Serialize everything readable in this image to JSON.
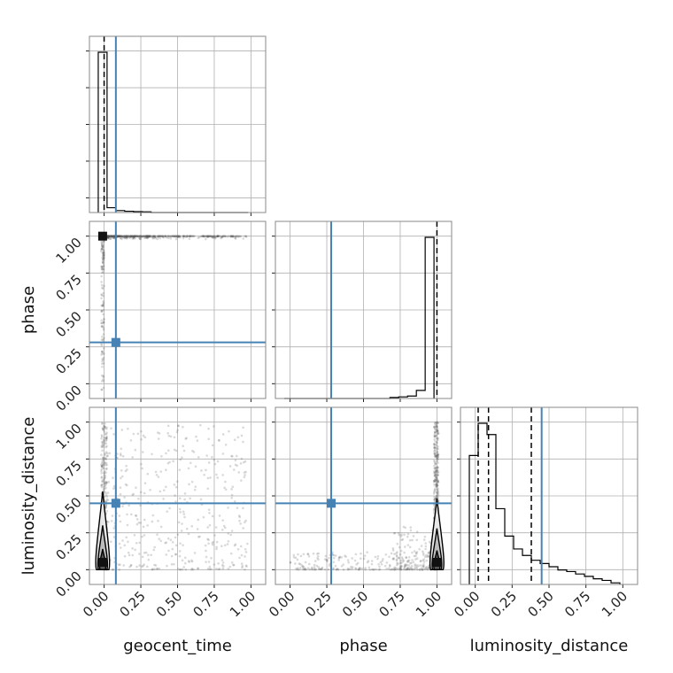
{
  "chart_data": {
    "type": "corner",
    "parameters": [
      "geocent_time",
      "phase",
      "luminosity_distance"
    ],
    "labels": {
      "x": [
        "geocent_time",
        "phase",
        "luminosity_distance"
      ],
      "y": [
        "phase",
        "luminosity_distance"
      ]
    },
    "ticks": [
      0.0,
      0.25,
      0.5,
      0.75,
      1.0
    ],
    "tick_labels": [
      "0.00",
      "0.25",
      "0.50",
      "0.75",
      "1.00"
    ],
    "axis_ranges": [
      [
        -0.1,
        1.1
      ],
      [
        -0.1,
        1.1
      ],
      [
        -0.1,
        1.1
      ]
    ],
    "grid": true,
    "truths": [
      0.08,
      0.28,
      0.45
    ],
    "quantiles": {
      "geocent_time": [
        0.0
      ],
      "phase": [
        1.0
      ],
      "luminosity_distance": [
        0.02,
        0.09,
        0.38
      ]
    },
    "histograms": {
      "bin_edges": [
        -0.04,
        0.02,
        0.08,
        0.14,
        0.2,
        0.26,
        0.32,
        0.38,
        0.44,
        0.5,
        0.56,
        0.62,
        0.68,
        0.74,
        0.8,
        0.86,
        0.92,
        0.98
      ],
      "geocent_time": [
        1.0,
        0.03,
        0.012,
        0.008,
        0.006,
        0.004,
        0,
        0,
        0,
        0,
        0,
        0,
        0,
        0,
        0,
        0,
        0
      ],
      "phase": [
        0,
        0,
        0,
        0,
        0,
        0,
        0,
        0,
        0,
        0,
        0,
        0,
        0.006,
        0.01,
        0.015,
        0.05,
        1.0
      ],
      "luminosity_distance": [
        0.8,
        1.0,
        0.93,
        0.47,
        0.3,
        0.22,
        0.18,
        0.15,
        0.13,
        0.11,
        0.09,
        0.08,
        0.065,
        0.05,
        0.035,
        0.025,
        0.01
      ]
    },
    "colors": {
      "truth": "#4682b4",
      "hist": "#000000",
      "points": "#555555",
      "grid": "#b0b0b0",
      "frame": "#888888"
    }
  }
}
